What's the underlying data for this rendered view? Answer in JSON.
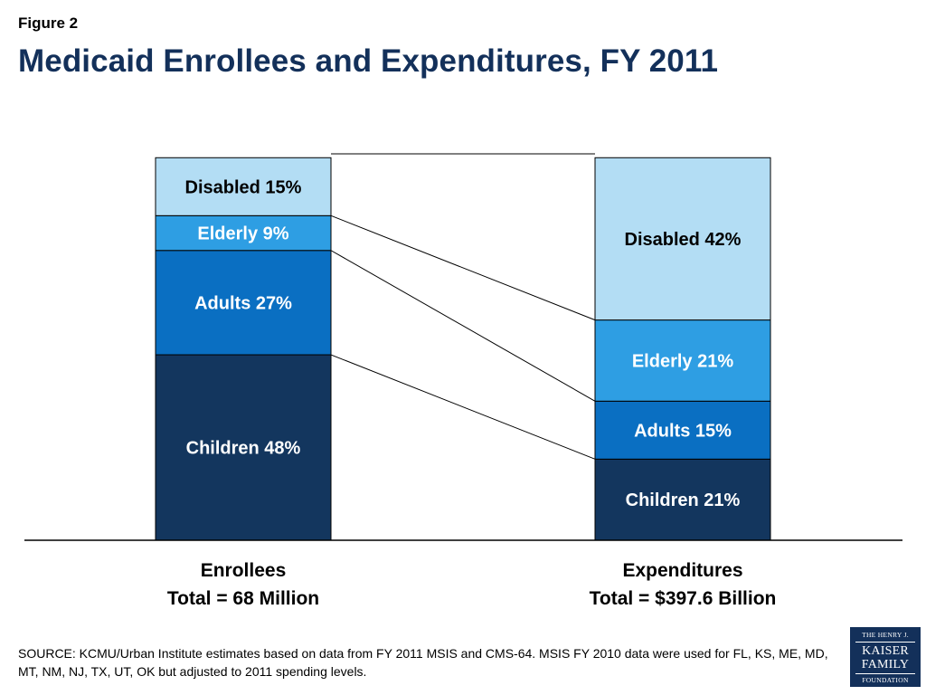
{
  "figure_label": "Figure 2",
  "title": "Medicaid Enrollees and Expenditures, FY 2011",
  "chart_data": {
    "type": "bar",
    "stacked": true,
    "percent": true,
    "categories": [
      "Enrollees",
      "Expenditures"
    ],
    "category_subtitles": [
      "Total = 68 Million",
      "Total = $397.6 Billion"
    ],
    "series": [
      {
        "name": "Children",
        "values": [
          48,
          21
        ],
        "color": "#13365e",
        "text_color": "#ffffff"
      },
      {
        "name": "Adults",
        "values": [
          27,
          15
        ],
        "color": "#0a6fc2",
        "text_color": "#ffffff"
      },
      {
        "name": "Elderly",
        "values": [
          9,
          21
        ],
        "color": "#2e9ee3",
        "text_color": "#ffffff"
      },
      {
        "name": "Disabled",
        "values": [
          15,
          42
        ],
        "color": "#b3ddf4",
        "text_color": "#000000"
      }
    ],
    "data_labels": [
      [
        "Children 48%",
        "Children 21%"
      ],
      [
        "Adults 27%",
        "Adults 15%"
      ],
      [
        "Elderly 9%",
        "Elderly 21%"
      ],
      [
        "Disabled 15%",
        "Disabled 42%"
      ]
    ],
    "connector_lines": true,
    "ylim": [
      0,
      100
    ],
    "legend": "none",
    "grid": false
  },
  "source_note": "SOURCE:  KCMU/Urban Institute estimates based on data from FY 2011 MSIS and CMS-64. MSIS FY 2010 data were used for FL, KS, ME, MD, MT, NM, NJ, TX, UT, OK but adjusted to 2011 spending levels.",
  "logo": {
    "line1": "THE HENRY J.",
    "line2": "KAISER",
    "line3": "FAMILY",
    "line4": "FOUNDATION"
  }
}
